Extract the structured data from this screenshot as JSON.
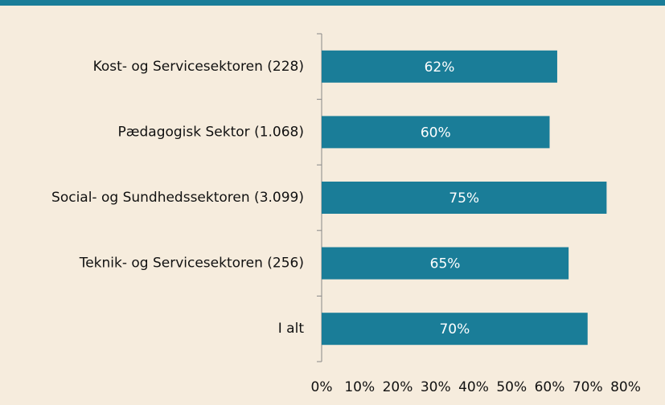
{
  "chart_data": {
    "type": "bar",
    "orientation": "horizontal",
    "categories": [
      "Kost- og Servicesektoren (228)",
      "Pædagogisk Sektor (1.068)",
      "Social- og Sundhedssektoren (3.099)",
      "Teknik- og Servicesektoren (256)",
      "I alt"
    ],
    "values": [
      62,
      60,
      75,
      65,
      70
    ],
    "value_labels": [
      "62%",
      "60%",
      "75%",
      "65%",
      "70%"
    ],
    "color": "#1a7d98",
    "xlim": [
      0,
      80
    ],
    "xticks": [
      {
        "value": 0,
        "label": "0%"
      },
      {
        "value": 10,
        "label": "10%"
      },
      {
        "value": 20,
        "label": "20%"
      },
      {
        "value": 30,
        "label": "30%"
      },
      {
        "value": 40,
        "label": "40%"
      },
      {
        "value": 50,
        "label": "50%"
      },
      {
        "value": 60,
        "label": "60%"
      },
      {
        "value": 70,
        "label": "70%"
      },
      {
        "value": 80,
        "label": "80%"
      }
    ],
    "grid": false
  }
}
